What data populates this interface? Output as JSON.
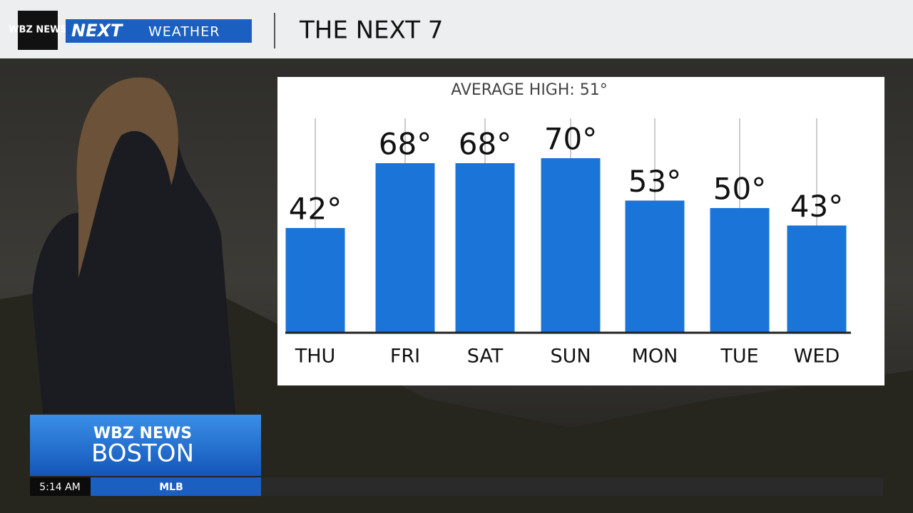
{
  "header": {
    "logo": "WBZ NEWS",
    "brand_next": "NEXT",
    "brand_weather": "WEATHER",
    "title": "THE NEXT 7"
  },
  "chart_data": {
    "type": "bar",
    "subtitle": "AVERAGE HIGH:  51°",
    "categories": [
      "THU",
      "FRI",
      "SAT",
      "SUN",
      "MON",
      "TUE",
      "WED"
    ],
    "values": [
      42,
      68,
      68,
      70,
      53,
      50,
      43
    ],
    "value_labels": [
      "42°",
      "68°",
      "68°",
      "70°",
      "53°",
      "50°",
      "43°"
    ],
    "color": "#1b74d8"
  },
  "lower_third": {
    "network": "WBZ NEWS",
    "city": "BOSTON"
  },
  "ticker": {
    "time": "5:14 AM",
    "topic": "MLB"
  }
}
